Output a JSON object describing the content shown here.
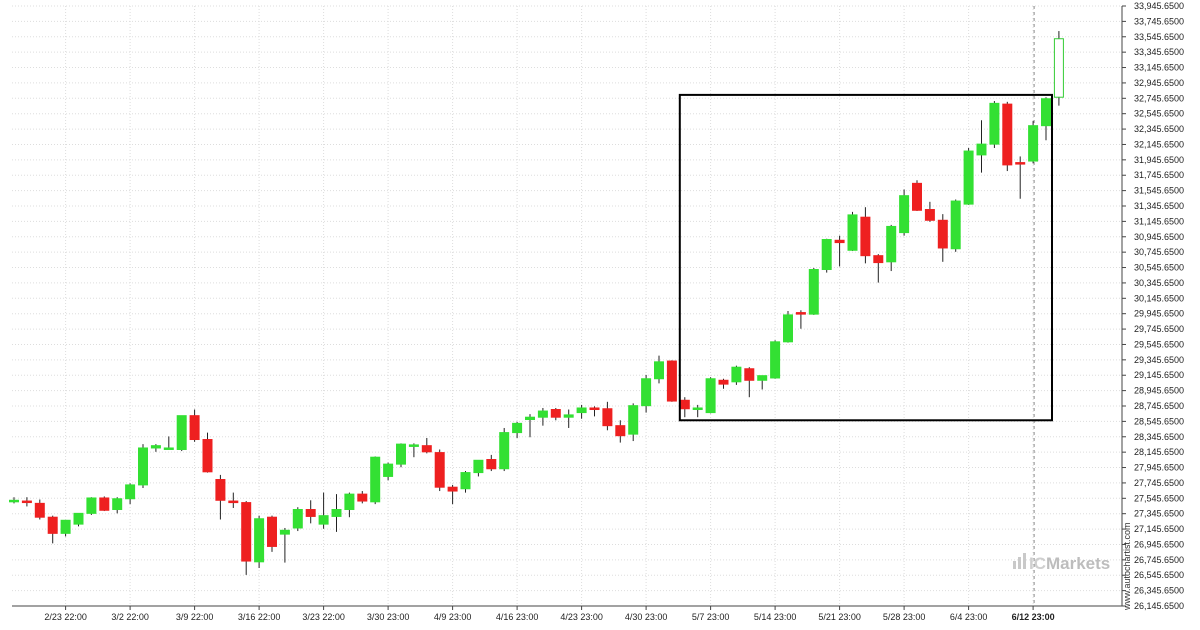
{
  "chart_data": {
    "type": "candlestick",
    "title": "",
    "xlabel": "",
    "ylabel": "",
    "ylim": [
      26145.65,
      33945.65
    ],
    "y_ticks": [
      "33,945.6500",
      "33,745.6500",
      "33,545.6500",
      "33,345.6500",
      "33,145.6500",
      "32,945.6500",
      "32,745.6500",
      "32,545.6500",
      "32,345.6500",
      "32,145.6500",
      "31,945.6500",
      "31,745.6500",
      "31,545.6500",
      "31,345.6500",
      "31,145.6500",
      "30,945.6500",
      "30,745.6500",
      "30,545.6500",
      "30,345.6500",
      "30,145.6500",
      "29,945.6500",
      "29,745.6500",
      "29,545.6500",
      "29,345.6500",
      "29,145.6500",
      "28,945.6500",
      "28,745.6500",
      "28,545.6500",
      "28,345.6500",
      "28,145.6500",
      "27,945.6500",
      "27,745.6500",
      "27,545.6500",
      "27,345.6500",
      "27,145.6500",
      "26,945.6500",
      "26,745.6500",
      "26,545.6500",
      "26,345.6500",
      "26,145.6500"
    ],
    "x_ticks": [
      {
        "label": "2/23 22:00",
        "index": 4
      },
      {
        "label": "3/2 22:00",
        "index": 9
      },
      {
        "label": "3/9 22:00",
        "index": 14
      },
      {
        "label": "3/16 22:00",
        "index": 19
      },
      {
        "label": "3/23 22:00",
        "index": 24
      },
      {
        "label": "3/30 23:00",
        "index": 29
      },
      {
        "label": "4/9 23:00",
        "index": 34
      },
      {
        "label": "4/16 23:00",
        "index": 39
      },
      {
        "label": "4/23 23:00",
        "index": 44
      },
      {
        "label": "4/30 23:00",
        "index": 49
      },
      {
        "label": "5/7 23:00",
        "index": 54
      },
      {
        "label": "5/14 23:00",
        "index": 59
      },
      {
        "label": "5/21 23:00",
        "index": 64
      },
      {
        "label": "5/28 23:00",
        "index": 69
      },
      {
        "label": "6/4 23:00",
        "index": 74
      },
      {
        "label": "6/12 23:00",
        "index": 79,
        "bold": true
      }
    ],
    "candles": [
      {
        "o": 27500,
        "h": 27560,
        "l": 27480,
        "c": 27520
      },
      {
        "o": 27510,
        "h": 27560,
        "l": 27440,
        "c": 27500
      },
      {
        "o": 27480,
        "h": 27530,
        "l": 27270,
        "c": 27300
      },
      {
        "o": 27300,
        "h": 27320,
        "l": 26960,
        "c": 27090
      },
      {
        "o": 27090,
        "h": 27260,
        "l": 27050,
        "c": 27260
      },
      {
        "o": 27210,
        "h": 27350,
        "l": 27180,
        "c": 27350
      },
      {
        "o": 27350,
        "h": 27560,
        "l": 27330,
        "c": 27550
      },
      {
        "o": 27550,
        "h": 27570,
        "l": 27380,
        "c": 27390
      },
      {
        "o": 27400,
        "h": 27560,
        "l": 27350,
        "c": 27540
      },
      {
        "o": 27540,
        "h": 27740,
        "l": 27470,
        "c": 27720
      },
      {
        "o": 27720,
        "h": 28250,
        "l": 27680,
        "c": 28200
      },
      {
        "o": 28200,
        "h": 28250,
        "l": 28150,
        "c": 28230
      },
      {
        "o": 28200,
        "h": 28350,
        "l": 28180,
        "c": 28200
      },
      {
        "o": 28180,
        "h": 28620,
        "l": 28160,
        "c": 28620
      },
      {
        "o": 28620,
        "h": 28700,
        "l": 28280,
        "c": 28310
      },
      {
        "o": 28310,
        "h": 28400,
        "l": 27880,
        "c": 27890
      },
      {
        "o": 27790,
        "h": 27850,
        "l": 27270,
        "c": 27520
      },
      {
        "o": 27510,
        "h": 27620,
        "l": 27420,
        "c": 27490
      },
      {
        "o": 27490,
        "h": 27510,
        "l": 26550,
        "c": 26730
      },
      {
        "o": 26720,
        "h": 27320,
        "l": 26640,
        "c": 27280
      },
      {
        "o": 27300,
        "h": 27320,
        "l": 26850,
        "c": 26920
      },
      {
        "o": 27080,
        "h": 27160,
        "l": 26710,
        "c": 27130
      },
      {
        "o": 27160,
        "h": 27430,
        "l": 27120,
        "c": 27400
      },
      {
        "o": 27400,
        "h": 27520,
        "l": 27220,
        "c": 27310
      },
      {
        "o": 27210,
        "h": 27620,
        "l": 27150,
        "c": 27320
      },
      {
        "o": 27310,
        "h": 27600,
        "l": 27110,
        "c": 27400
      },
      {
        "o": 27400,
        "h": 27620,
        "l": 27300,
        "c": 27600
      },
      {
        "o": 27600,
        "h": 27640,
        "l": 27480,
        "c": 27510
      },
      {
        "o": 27500,
        "h": 28090,
        "l": 27470,
        "c": 28080
      },
      {
        "o": 27830,
        "h": 28010,
        "l": 27780,
        "c": 27990
      },
      {
        "o": 27990,
        "h": 28260,
        "l": 27950,
        "c": 28250
      },
      {
        "o": 28220,
        "h": 28260,
        "l": 28080,
        "c": 28240
      },
      {
        "o": 28230,
        "h": 28330,
        "l": 28130,
        "c": 28150
      },
      {
        "o": 28140,
        "h": 28180,
        "l": 27640,
        "c": 27690
      },
      {
        "o": 27690,
        "h": 27720,
        "l": 27470,
        "c": 27640
      },
      {
        "o": 27670,
        "h": 27900,
        "l": 27620,
        "c": 27880
      },
      {
        "o": 27880,
        "h": 28040,
        "l": 27830,
        "c": 28040
      },
      {
        "o": 28050,
        "h": 28110,
        "l": 27900,
        "c": 27930
      },
      {
        "o": 27930,
        "h": 28460,
        "l": 27900,
        "c": 28400
      },
      {
        "o": 28400,
        "h": 28540,
        "l": 28330,
        "c": 28520
      },
      {
        "o": 28570,
        "h": 28640,
        "l": 28340,
        "c": 28600
      },
      {
        "o": 28600,
        "h": 28720,
        "l": 28490,
        "c": 28680
      },
      {
        "o": 28700,
        "h": 28720,
        "l": 28560,
        "c": 28600
      },
      {
        "o": 28600,
        "h": 28700,
        "l": 28460,
        "c": 28630
      },
      {
        "o": 28660,
        "h": 28760,
        "l": 28580,
        "c": 28720
      },
      {
        "o": 28720,
        "h": 28740,
        "l": 28610,
        "c": 28700
      },
      {
        "o": 28710,
        "h": 28800,
        "l": 28430,
        "c": 28490
      },
      {
        "o": 28490,
        "h": 28560,
        "l": 28270,
        "c": 28360
      },
      {
        "o": 28380,
        "h": 28780,
        "l": 28290,
        "c": 28750
      },
      {
        "o": 28750,
        "h": 29150,
        "l": 28660,
        "c": 29100
      },
      {
        "o": 29100,
        "h": 29400,
        "l": 29040,
        "c": 29320
      },
      {
        "o": 29330,
        "h": 29340,
        "l": 28800,
        "c": 28810
      },
      {
        "o": 28820,
        "h": 28860,
        "l": 28600,
        "c": 28710
      },
      {
        "o": 28700,
        "h": 28760,
        "l": 28600,
        "c": 28720
      },
      {
        "o": 28660,
        "h": 29120,
        "l": 28650,
        "c": 29100
      },
      {
        "o": 29080,
        "h": 29100,
        "l": 28970,
        "c": 29030
      },
      {
        "o": 29060,
        "h": 29270,
        "l": 29020,
        "c": 29250
      },
      {
        "o": 29230,
        "h": 29250,
        "l": 28860,
        "c": 29080
      },
      {
        "o": 29080,
        "h": 29140,
        "l": 28960,
        "c": 29140
      },
      {
        "o": 29110,
        "h": 29600,
        "l": 29100,
        "c": 29580
      },
      {
        "o": 29580,
        "h": 29980,
        "l": 29570,
        "c": 29930
      },
      {
        "o": 29960,
        "h": 29990,
        "l": 29750,
        "c": 29940
      },
      {
        "o": 29940,
        "h": 30540,
        "l": 29930,
        "c": 30520
      },
      {
        "o": 30520,
        "h": 30920,
        "l": 30480,
        "c": 30910
      },
      {
        "o": 30900,
        "h": 30960,
        "l": 30560,
        "c": 30870
      },
      {
        "o": 30770,
        "h": 31270,
        "l": 30760,
        "c": 31230
      },
      {
        "o": 31200,
        "h": 31330,
        "l": 30600,
        "c": 30700
      },
      {
        "o": 30700,
        "h": 30720,
        "l": 30350,
        "c": 30610
      },
      {
        "o": 30620,
        "h": 31100,
        "l": 30500,
        "c": 31080
      },
      {
        "o": 31000,
        "h": 31560,
        "l": 30960,
        "c": 31480
      },
      {
        "o": 31640,
        "h": 31680,
        "l": 31280,
        "c": 31290
      },
      {
        "o": 31300,
        "h": 31400,
        "l": 31140,
        "c": 31160
      },
      {
        "o": 31160,
        "h": 31240,
        "l": 30620,
        "c": 30800
      },
      {
        "o": 30790,
        "h": 31430,
        "l": 30750,
        "c": 31410
      },
      {
        "o": 31370,
        "h": 32100,
        "l": 31360,
        "c": 32060
      },
      {
        "o": 32010,
        "h": 32460,
        "l": 31780,
        "c": 32150
      },
      {
        "o": 32150,
        "h": 32710,
        "l": 32100,
        "c": 32680
      },
      {
        "o": 32670,
        "h": 32700,
        "l": 31800,
        "c": 31880
      },
      {
        "o": 31910,
        "h": 31990,
        "l": 31440,
        "c": 31900
      },
      {
        "o": 31930,
        "h": 32450,
        "l": 31900,
        "c": 32390
      },
      {
        "o": 32390,
        "h": 32760,
        "l": 32200,
        "c": 32740
      },
      {
        "o": 32760,
        "h": 33620,
        "l": 32650,
        "c": 33520
      }
    ],
    "annotations": [
      {
        "type": "rectangle",
        "start_index": 52,
        "end_index": 80,
        "y_low": 28560,
        "y_high": 32790
      }
    ],
    "colors": {
      "up": "#33e033",
      "down": "#ee2020",
      "box": "#000000",
      "grid": "#dddddd"
    }
  },
  "watermark": {
    "brand_prefix": "IC",
    "brand_suffix": "Markets",
    "site": "www.autochartist.com"
  }
}
